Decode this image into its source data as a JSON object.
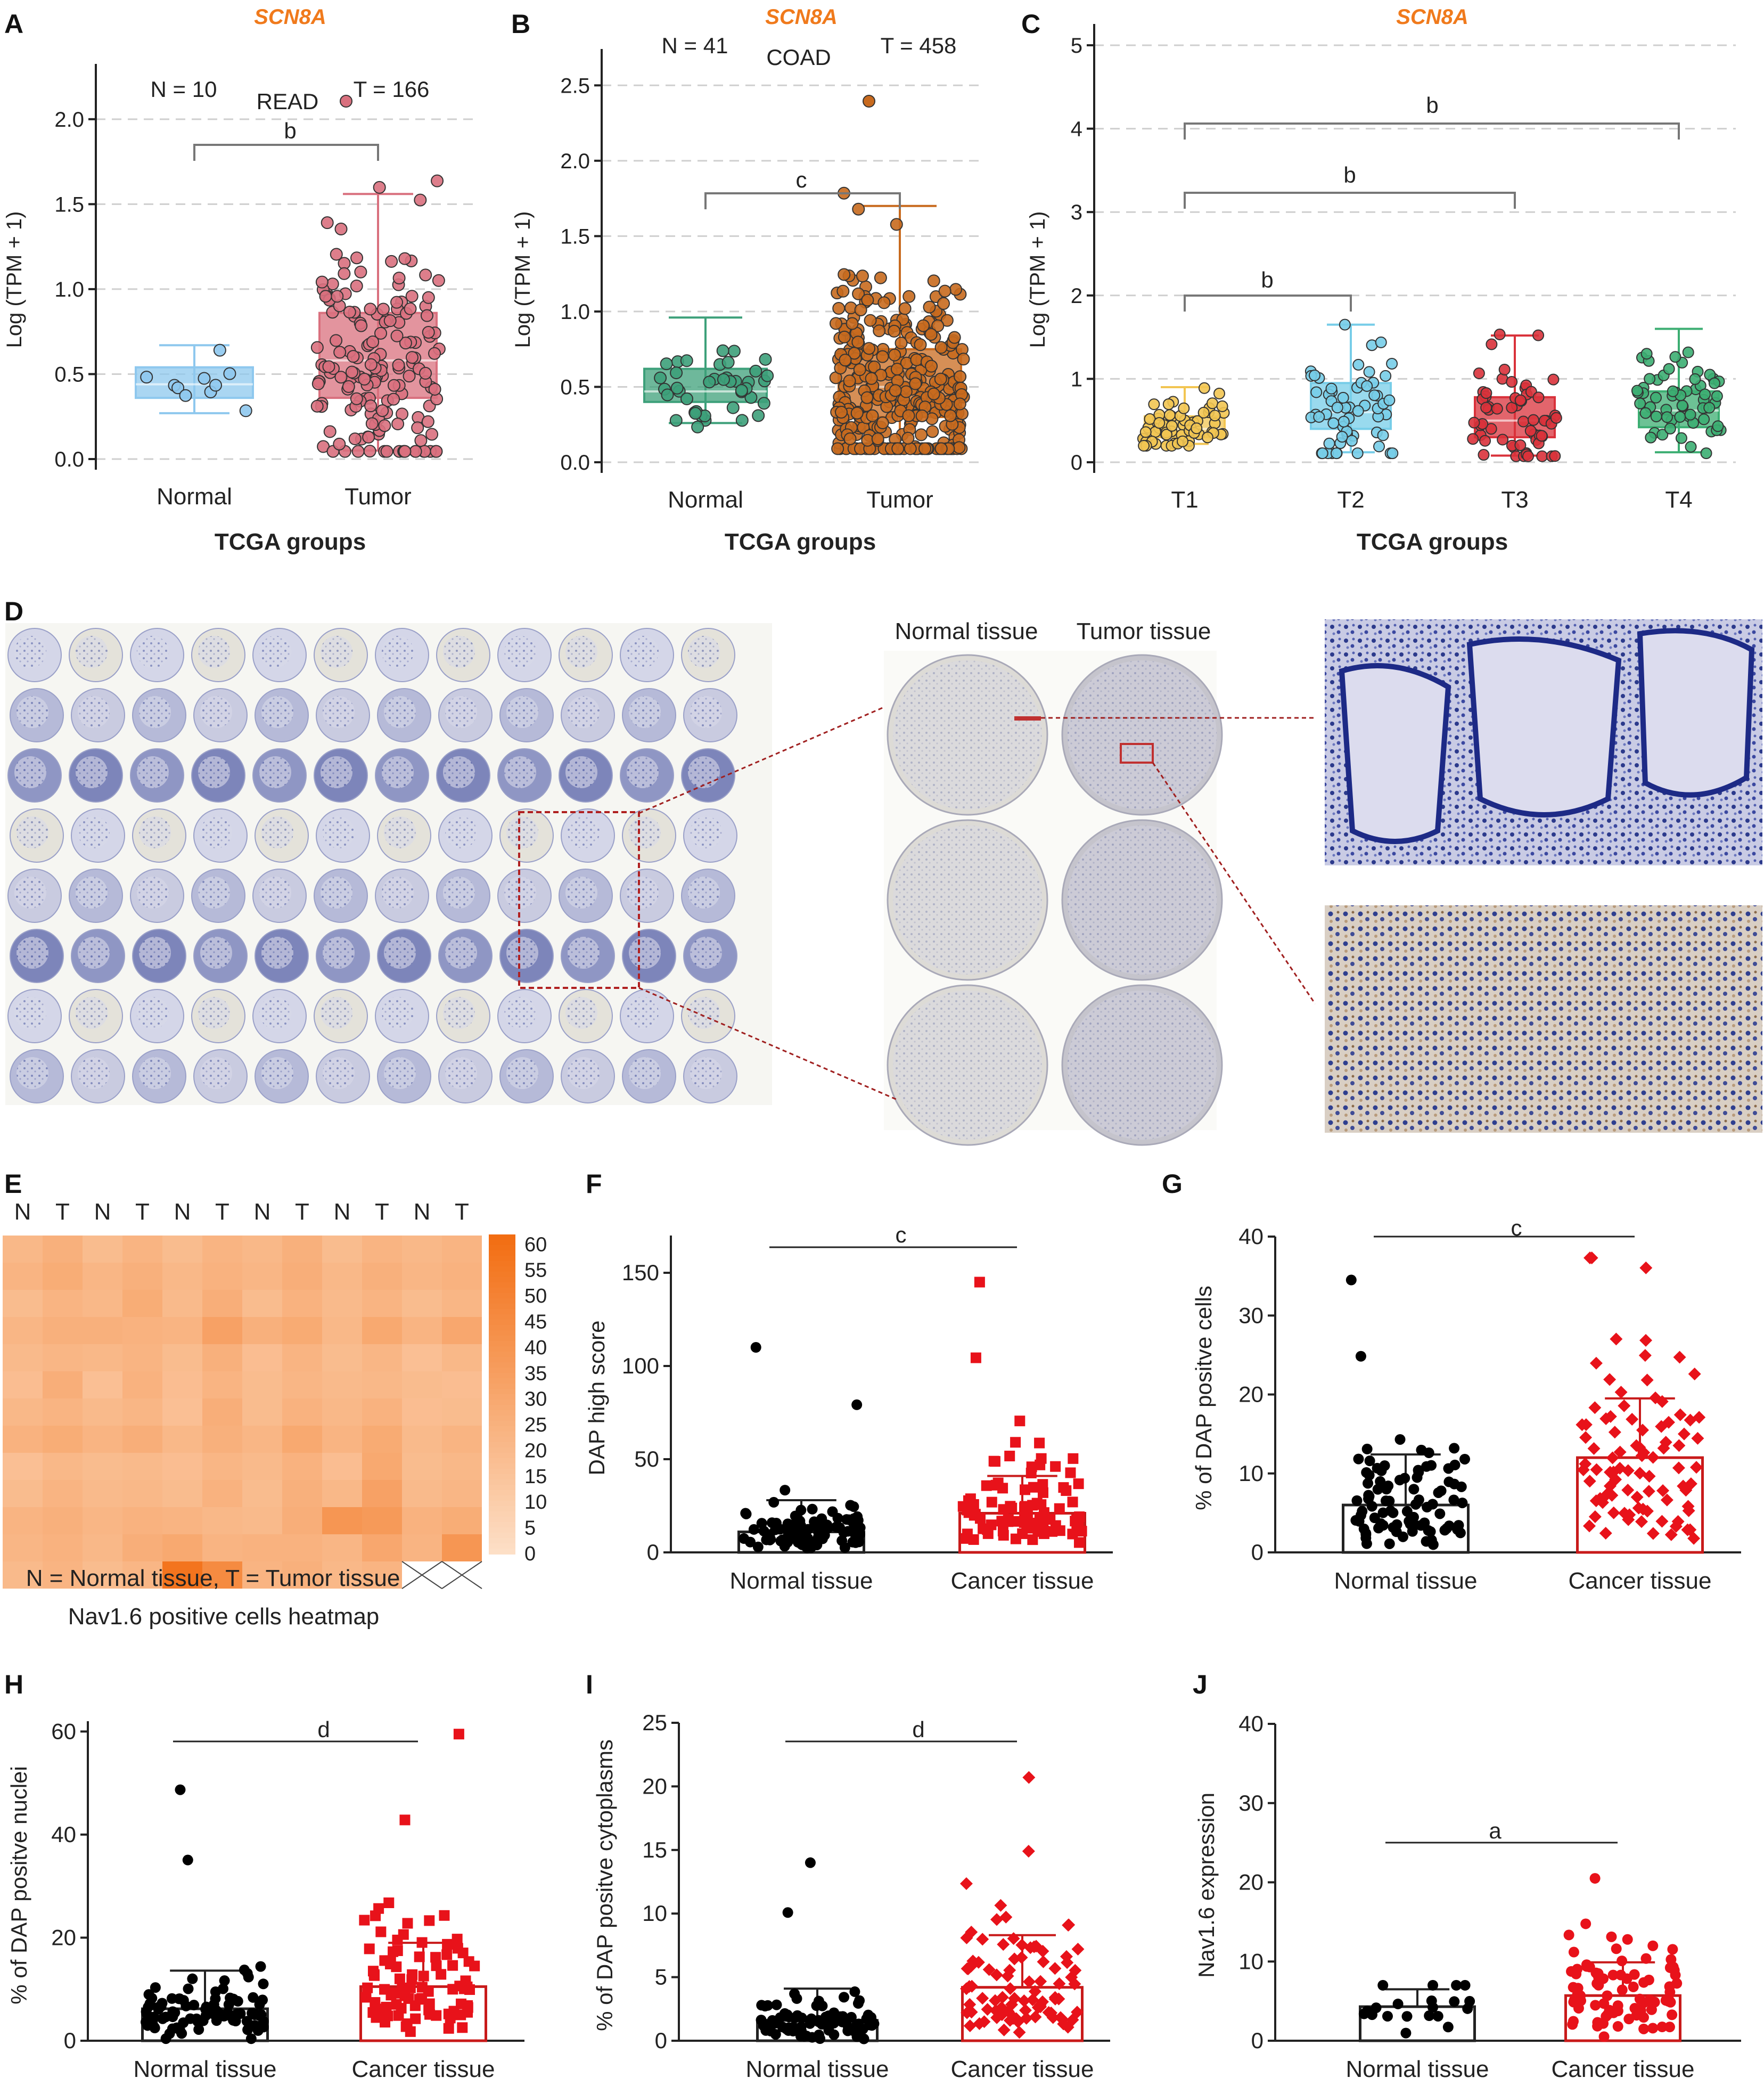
{
  "panels": {
    "A": {
      "letter": "A",
      "gene": "SCN8A",
      "cohort": "READ",
      "n_label": "N = 10",
      "t_label": "T = 166",
      "ylabel": "Log (TPM + 1)",
      "xlabel": "TCGA groups",
      "sig": "b"
    },
    "B": {
      "letter": "B",
      "gene": "SCN8A",
      "cohort": "COAD",
      "n_label": "N = 41",
      "t_label": "T = 458",
      "ylabel": "Log (TPM + 1)",
      "xlabel": "TCGA groups",
      "sig": "c"
    },
    "C": {
      "letter": "C",
      "gene": "SCN8A",
      "ylabel": "Log (TPM + 1)",
      "xlabel": "TCGA groups",
      "sig": [
        "b",
        "b",
        "b"
      ]
    },
    "D": {
      "letter": "D",
      "normal_title": "Normal tissue",
      "tumor_title": "Tumor tissue"
    },
    "E": {
      "letter": "E",
      "caption1": "N = Normal tissue, T = Tumor tissue",
      "caption2": "Nav1.6 positive cells heatmap"
    },
    "F": {
      "letter": "F",
      "ylabel": "DAP high score",
      "sig": "c"
    },
    "G": {
      "letter": "G",
      "ylabel": "% of DAP positve cells",
      "sig": "c"
    },
    "H": {
      "letter": "H",
      "ylabel": "% of DAP positve nuclei",
      "sig": "d"
    },
    "I": {
      "letter": "I",
      "ylabel": "% of DAP positve cytoplasms",
      "sig": "d"
    },
    "J": {
      "letter": "J",
      "ylabel": "Nav1.6 expression",
      "sig": "a"
    }
  },
  "chart_data": [
    {
      "id": "A",
      "type": "box",
      "title": "SCN8A",
      "subtitle": "READ",
      "xlabel": "TCGA groups",
      "ylabel": "Log (TPM + 1)",
      "ylim": [
        0,
        2.2
      ],
      "yticks": [
        "0.0",
        "0.5",
        "1.0",
        "1.5",
        "2.0"
      ],
      "grid": true,
      "categories": [
        "Normal",
        "Tumor"
      ],
      "box": [
        {
          "name": "Normal",
          "min": 0.27,
          "q1": 0.36,
          "median": 0.44,
          "q3": 0.54,
          "max": 0.67,
          "n": 10,
          "color": "#8ec8ee"
        },
        {
          "name": "Tumor",
          "min": 0.05,
          "q1": 0.36,
          "median": 0.58,
          "q3": 0.86,
          "max": 1.56,
          "n": 166,
          "color": "#d9707e"
        }
      ],
      "annotations": [
        "N = 10",
        "T = 166",
        "b"
      ]
    },
    {
      "id": "B",
      "type": "box",
      "title": "SCN8A",
      "subtitle": "COAD",
      "xlabel": "TCGA groups",
      "ylabel": "Log (TPM + 1)",
      "ylim": [
        0,
        2.6
      ],
      "yticks": [
        "0.0",
        "0.5",
        "1.0",
        "1.5",
        "2.0",
        "2.5"
      ],
      "grid": true,
      "categories": [
        "Normal",
        "Tumor"
      ],
      "box": [
        {
          "name": "Normal",
          "min": 0.26,
          "q1": 0.4,
          "median": 0.47,
          "q3": 0.62,
          "max": 0.96,
          "n": 41,
          "color": "#3da07a"
        },
        {
          "name": "Tumor",
          "min": 0.1,
          "q1": 0.3,
          "median": 0.5,
          "q3": 0.75,
          "max": 1.7,
          "n": 458,
          "color": "#c86a1e"
        }
      ],
      "annotations": [
        "N = 41",
        "T = 458",
        "c"
      ]
    },
    {
      "id": "C",
      "type": "box",
      "title": "SCN8A",
      "xlabel": "TCGA groups",
      "ylabel": "Log (TPM + 1)",
      "ylim": [
        0,
        5
      ],
      "yticks": [
        "0",
        "1",
        "2",
        "3",
        "4",
        "5"
      ],
      "grid": true,
      "categories": [
        "T1",
        "T2",
        "T3",
        "T4"
      ],
      "box": [
        {
          "name": "T1",
          "min": 0.22,
          "q1": 0.3,
          "median": 0.4,
          "q3": 0.55,
          "max": 0.9,
          "color": "#f2c552"
        },
        {
          "name": "T2",
          "min": 0.12,
          "q1": 0.4,
          "median": 0.6,
          "q3": 0.95,
          "max": 1.65,
          "color": "#77cde8"
        },
        {
          "name": "T3",
          "min": 0.08,
          "q1": 0.3,
          "median": 0.5,
          "q3": 0.78,
          "max": 1.52,
          "color": "#d9323b"
        },
        {
          "name": "T4",
          "min": 0.12,
          "q1": 0.42,
          "median": 0.62,
          "q3": 0.85,
          "max": 1.6,
          "color": "#3cae72"
        }
      ],
      "annotations": [
        "b",
        "b",
        "b"
      ]
    },
    {
      "id": "E",
      "type": "heatmap",
      "columns": [
        "N",
        "T",
        "N",
        "T",
        "N",
        "T",
        "N",
        "T",
        "N",
        "T",
        "N",
        "T"
      ],
      "color_scale": {
        "min": 0,
        "max": 62,
        "ticks": [
          "60",
          "55",
          "50",
          "45",
          "40",
          "35",
          "30",
          "25",
          "20",
          "15",
          "10",
          "5",
          "0"
        ],
        "from": "#fde1c9",
        "to": "#f26d12"
      },
      "values": [
        [
          22,
          26,
          20,
          24,
          20,
          24,
          22,
          26,
          20,
          24,
          22,
          24
        ],
        [
          24,
          28,
          23,
          26,
          22,
          25,
          23,
          27,
          22,
          26,
          23,
          25
        ],
        [
          20,
          24,
          22,
          28,
          21,
          27,
          20,
          25,
          21,
          24,
          20,
          23
        ],
        [
          23,
          26,
          26,
          25,
          24,
          34,
          26,
          29,
          22,
          30,
          24,
          31
        ],
        [
          21,
          23,
          22,
          24,
          20,
          26,
          19,
          24,
          20,
          23,
          18,
          22
        ],
        [
          19,
          27,
          18,
          25,
          19,
          24,
          20,
          23,
          21,
          22,
          20,
          19
        ],
        [
          22,
          24,
          21,
          23,
          18,
          27,
          20,
          25,
          22,
          25,
          19,
          20
        ],
        [
          25,
          28,
          24,
          27,
          22,
          26,
          23,
          30,
          24,
          29,
          21,
          24
        ],
        [
          18,
          22,
          20,
          21,
          19,
          23,
          21,
          25,
          19,
          30,
          20,
          22
        ],
        [
          20,
          24,
          21,
          22,
          20,
          25,
          20,
          26,
          22,
          34,
          21,
          23
        ],
        [
          24,
          26,
          23,
          25,
          24,
          22,
          21,
          27,
          40,
          38,
          25,
          28
        ],
        [
          23,
          25,
          22,
          27,
          30,
          24,
          25,
          25,
          23,
          31,
          24,
          40
        ],
        [
          21,
          24,
          20,
          23,
          58,
          46,
          24,
          26,
          22,
          24,
          null,
          null
        ]
      ]
    },
    {
      "id": "F",
      "type": "scatter",
      "ylabel": "DAP high score",
      "ylim": [
        0,
        170
      ],
      "yticks": [
        "0",
        "50",
        "100",
        "150"
      ],
      "categories": [
        "Normal tissue",
        "Cancer tissue"
      ],
      "series": [
        {
          "name": "Normal tissue",
          "mean": 11,
          "sd": 28,
          "max": 110,
          "n": 90,
          "color": "#000000"
        },
        {
          "name": "Cancer tissue",
          "mean": 21,
          "sd": 41,
          "max": 145,
          "n": 90,
          "color": "#e8121a"
        }
      ],
      "annotations": [
        "c"
      ]
    },
    {
      "id": "G",
      "type": "scatter",
      "ylabel": "% of DAP positve cells",
      "ylim": [
        0,
        40
      ],
      "yticks": [
        "0",
        "10",
        "20",
        "30",
        "40"
      ],
      "categories": [
        "Normal tissue",
        "Cancer tissue"
      ],
      "series": [
        {
          "name": "Normal tissue",
          "mean": 6,
          "sd": 12.4,
          "max": 34.5,
          "n": 90,
          "color": "#000000"
        },
        {
          "name": "Cancer tissue",
          "mean": 12,
          "sd": 19.5,
          "max": 37.3,
          "n": 90,
          "color": "#e8121a"
        }
      ],
      "annotations": [
        "c"
      ]
    },
    {
      "id": "H",
      "type": "scatter",
      "ylabel": "% of DAP positve nuclei",
      "ylim": [
        0,
        62
      ],
      "yticks": [
        "0",
        "20",
        "40",
        "60"
      ],
      "categories": [
        "Normal tissue",
        "Cancer tissue"
      ],
      "series": [
        {
          "name": "Normal tissue",
          "mean": 6.2,
          "sd": 13.6,
          "max": 48.7,
          "n": 90,
          "color": "#000000"
        },
        {
          "name": "Cancer tissue",
          "mean": 10.5,
          "sd": 19,
          "max": 59.5,
          "n": 90,
          "color": "#e8121a"
        }
      ],
      "annotations": [
        "d"
      ]
    },
    {
      "id": "I",
      "type": "scatter",
      "ylabel": "% of DAP positve cytoplasms",
      "ylim": [
        0,
        25
      ],
      "yticks": [
        "0",
        "5",
        "10",
        "15",
        "20",
        "25"
      ],
      "categories": [
        "Normal tissue",
        "Cancer tissue"
      ],
      "series": [
        {
          "name": "Normal tissue",
          "mean": 1.6,
          "sd": 4.1,
          "max": 14,
          "n": 90,
          "color": "#000000"
        },
        {
          "name": "Cancer tissue",
          "mean": 4.2,
          "sd": 8.3,
          "max": 20.7,
          "n": 90,
          "color": "#e8121a"
        }
      ],
      "annotations": [
        "d"
      ]
    },
    {
      "id": "J",
      "type": "scatter",
      "ylabel": "Nav1.6 expression",
      "ylim": [
        0,
        40
      ],
      "yticks": [
        "0",
        "10",
        "20",
        "30",
        "40"
      ],
      "categories": [
        "Normal tissue",
        "Cancer tissue"
      ],
      "series": [
        {
          "name": "Normal tissue",
          "mean": 4.3,
          "sd": 6.5,
          "max": 7,
          "n": 20,
          "color": "#000000"
        },
        {
          "name": "Cancer tissue",
          "mean": 5.7,
          "sd": 9.9,
          "max": 20.5,
          "n": 85,
          "color": "#e8121a"
        }
      ],
      "annotations": [
        "a"
      ]
    }
  ]
}
